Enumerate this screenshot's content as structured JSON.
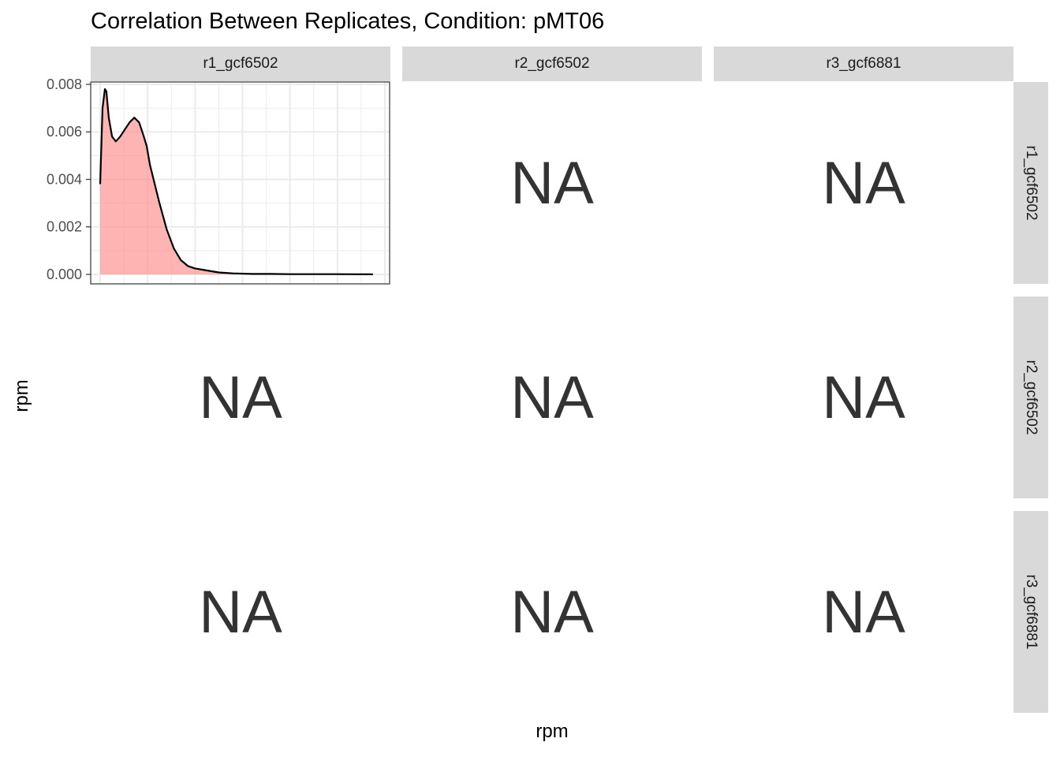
{
  "title": "Correlation Between Replicates, Condition: pMT06",
  "xlabel": "rpm",
  "ylabel": "rpm",
  "column_strips": [
    "r1_gcf6502",
    "r2_gcf6502",
    "r3_gcf6881"
  ],
  "row_strips": [
    "r1_gcf6502",
    "r2_gcf6502",
    "r3_gcf6881"
  ],
  "na_text": "NA",
  "colors": {
    "fill": "#FF8C8C",
    "line": "#000000",
    "strip": "#d9d9d9",
    "grid": "#ebebeb"
  },
  "chart_data": {
    "type": "area",
    "title": "Correlation Between Replicates, Condition: pMT06",
    "xlabel": "rpm",
    "ylabel": "rpm",
    "panel": "r1_gcf6502 x r1_gcf6502",
    "xlim": [
      -0.2,
      6.1
    ],
    "ylim": [
      -0.0004,
      0.0081
    ],
    "y_ticks": [
      0.0,
      0.002,
      0.004,
      0.006,
      0.008
    ],
    "y_tick_labels": [
      "0.000",
      "0.002",
      "0.004",
      "0.006",
      "0.008"
    ],
    "x_tick_labels": [],
    "x": [
      0.0,
      0.05,
      0.1,
      0.13,
      0.18,
      0.25,
      0.33,
      0.42,
      0.52,
      0.62,
      0.72,
      0.82,
      0.92,
      0.98,
      1.05,
      1.15,
      1.25,
      1.4,
      1.55,
      1.7,
      1.85,
      2.0,
      2.2,
      2.5,
      2.8,
      3.2,
      3.6,
      4.0,
      4.5,
      5.0,
      5.4,
      5.75
    ],
    "y": [
      0.0038,
      0.007,
      0.0078,
      0.0077,
      0.0066,
      0.0058,
      0.0056,
      0.0058,
      0.0061,
      0.0064,
      0.0066,
      0.0064,
      0.0058,
      0.0054,
      0.0046,
      0.0038,
      0.003,
      0.0019,
      0.0011,
      0.0006,
      0.00035,
      0.00025,
      0.00018,
      8e-05,
      4e-05,
      2e-05,
      2e-05,
      1e-05,
      1e-05,
      1e-05,
      5e-06,
      5e-06
    ],
    "non_na_panels": 1,
    "na_panel_count": 8,
    "grid": true,
    "legend": "none"
  }
}
